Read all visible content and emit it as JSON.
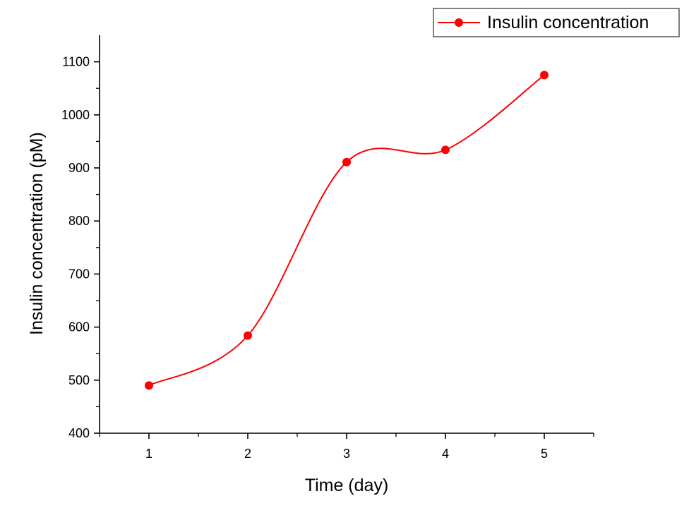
{
  "chart_data": {
    "type": "line",
    "smooth": true,
    "title": "",
    "xlabel": "Time (day)",
    "ylabel": "Insulin concentration (pM)",
    "xlim": [
      0.5,
      5.5
    ],
    "ylim": [
      400,
      1150
    ],
    "x_ticks": [
      1,
      2,
      3,
      4,
      5
    ],
    "y_ticks": [
      400,
      500,
      600,
      700,
      800,
      900,
      1000,
      1100
    ],
    "grid": false,
    "legend_position": "top-right",
    "series": [
      {
        "name": "Insulin concentration",
        "color": "#ff0000",
        "marker": "circle",
        "x": [
          1,
          2,
          3,
          4,
          5
        ],
        "y": [
          490,
          584,
          911,
          934,
          1075
        ]
      }
    ]
  }
}
